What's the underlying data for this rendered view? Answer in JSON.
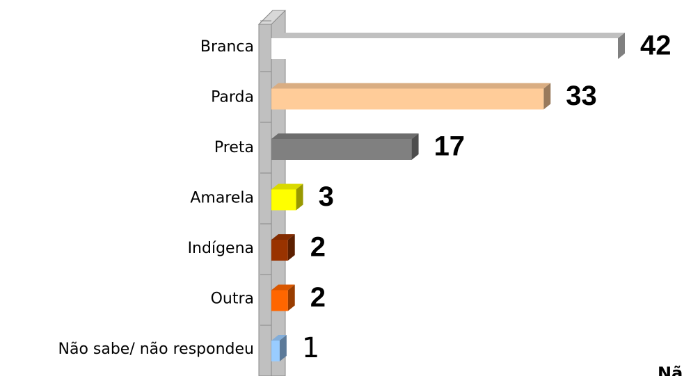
{
  "chart_data": {
    "type": "bar",
    "orientation": "horizontal",
    "categories": [
      "Branca",
      "Parda",
      "Preta",
      "Amarela",
      "Indígena",
      "Outra",
      "Não sabe/ não respondeu"
    ],
    "values": [
      42,
      33,
      17,
      3,
      2,
      2,
      1
    ],
    "colors": [
      "#ffffff",
      "#ffcc99",
      "#808080",
      "#ffff00",
      "#993300",
      "#ff6600",
      "#99ccff"
    ],
    "xlim": [
      0,
      42
    ],
    "annotation": "Nã"
  }
}
